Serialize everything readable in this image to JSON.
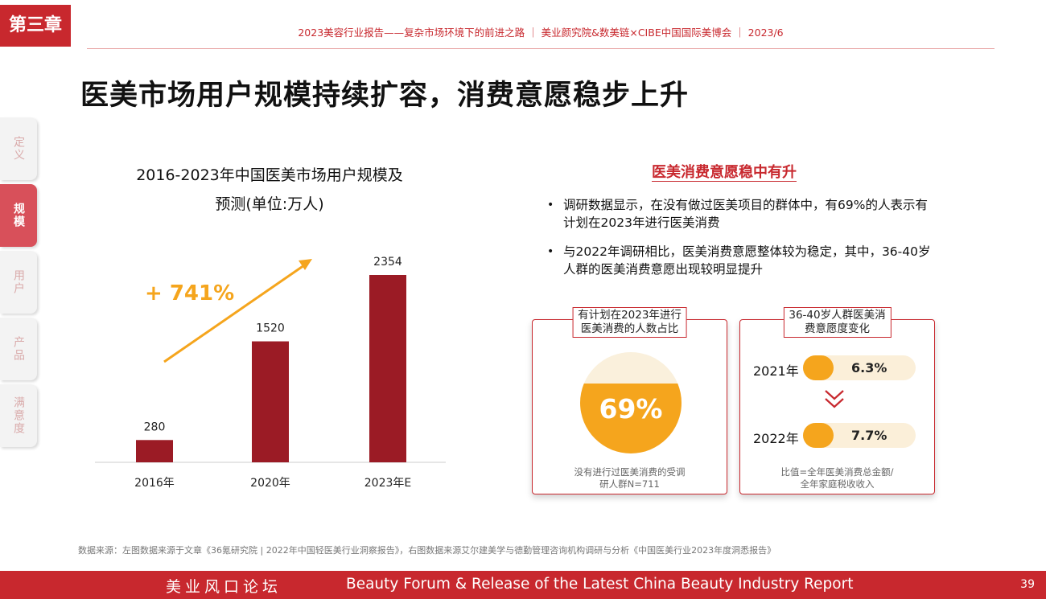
{
  "chapter": "第三章",
  "header": "2023美容行业报告——复杂市场环境下的前进之路 ｜ 美业颜究院&数美链×CIBE中国国际美博会 ｜ 2023/6",
  "title": "医美市场用户规模持续扩容，消费意愿稳步上升",
  "side_tabs": [
    {
      "label": "定义",
      "active": false
    },
    {
      "label": "规模",
      "active": true
    },
    {
      "label": "用户",
      "active": false
    },
    {
      "label": "产品",
      "active": false
    },
    {
      "label": "满意度",
      "active": false
    }
  ],
  "chart_data": {
    "type": "bar",
    "title_line1": "2016-2023年中国医美市场用户规模及",
    "title_line2": "预测(单位:万人)",
    "categories": [
      "2016年",
      "2020年",
      "2023年E"
    ],
    "values": [
      280,
      1520,
      2354
    ],
    "ylim": [
      0,
      2354
    ],
    "annotation": "+ 741%",
    "colors": {
      "bar": "#9b1b25",
      "arrow": "#f5a51d",
      "annotation": "#f5a51d",
      "axis": "#cccccc"
    }
  },
  "right": {
    "heading": "医美消费意愿稳中有升",
    "bullets": [
      "调研数据显示，在没有做过医美项目的群体中，有69%的人表示有计划在2023年进行医美消费",
      "与2022年调研相比，医美消费意愿整体较为稳定，其中，36-40岁人群的医美消费意愿出现较明显提升"
    ],
    "card1": {
      "label_line1": "有计划在2023年进行",
      "label_line2": "医美消费的人数占比",
      "value": "69%",
      "fraction": 0.69,
      "foot_line1": "没有进行过医美消费的受调",
      "foot_line2": "研人群N=711"
    },
    "card2": {
      "label_line1": "36-40岁人群医美消",
      "label_line2": "费意愿度变化",
      "rows": [
        {
          "year": "2021年",
          "value": "6.3%"
        },
        {
          "year": "2022年",
          "value": "7.7%"
        }
      ],
      "foot_line1": "比值=全年医美消费总金额/",
      "foot_line2": "全年家庭税收收入"
    }
  },
  "source": "数据来源：左图数据来源于文章《36氪研究院 | 2022年中国轻医美行业洞察报告》，右图数据来源艾尔建美学与德勤管理咨询机构调研与分析《中国医美行业2023年度洞悉报告》",
  "footer": {
    "cn": "美业风口论坛",
    "en": "Beauty Forum & Release of the Latest China Beauty Industry Report",
    "page": "39"
  }
}
